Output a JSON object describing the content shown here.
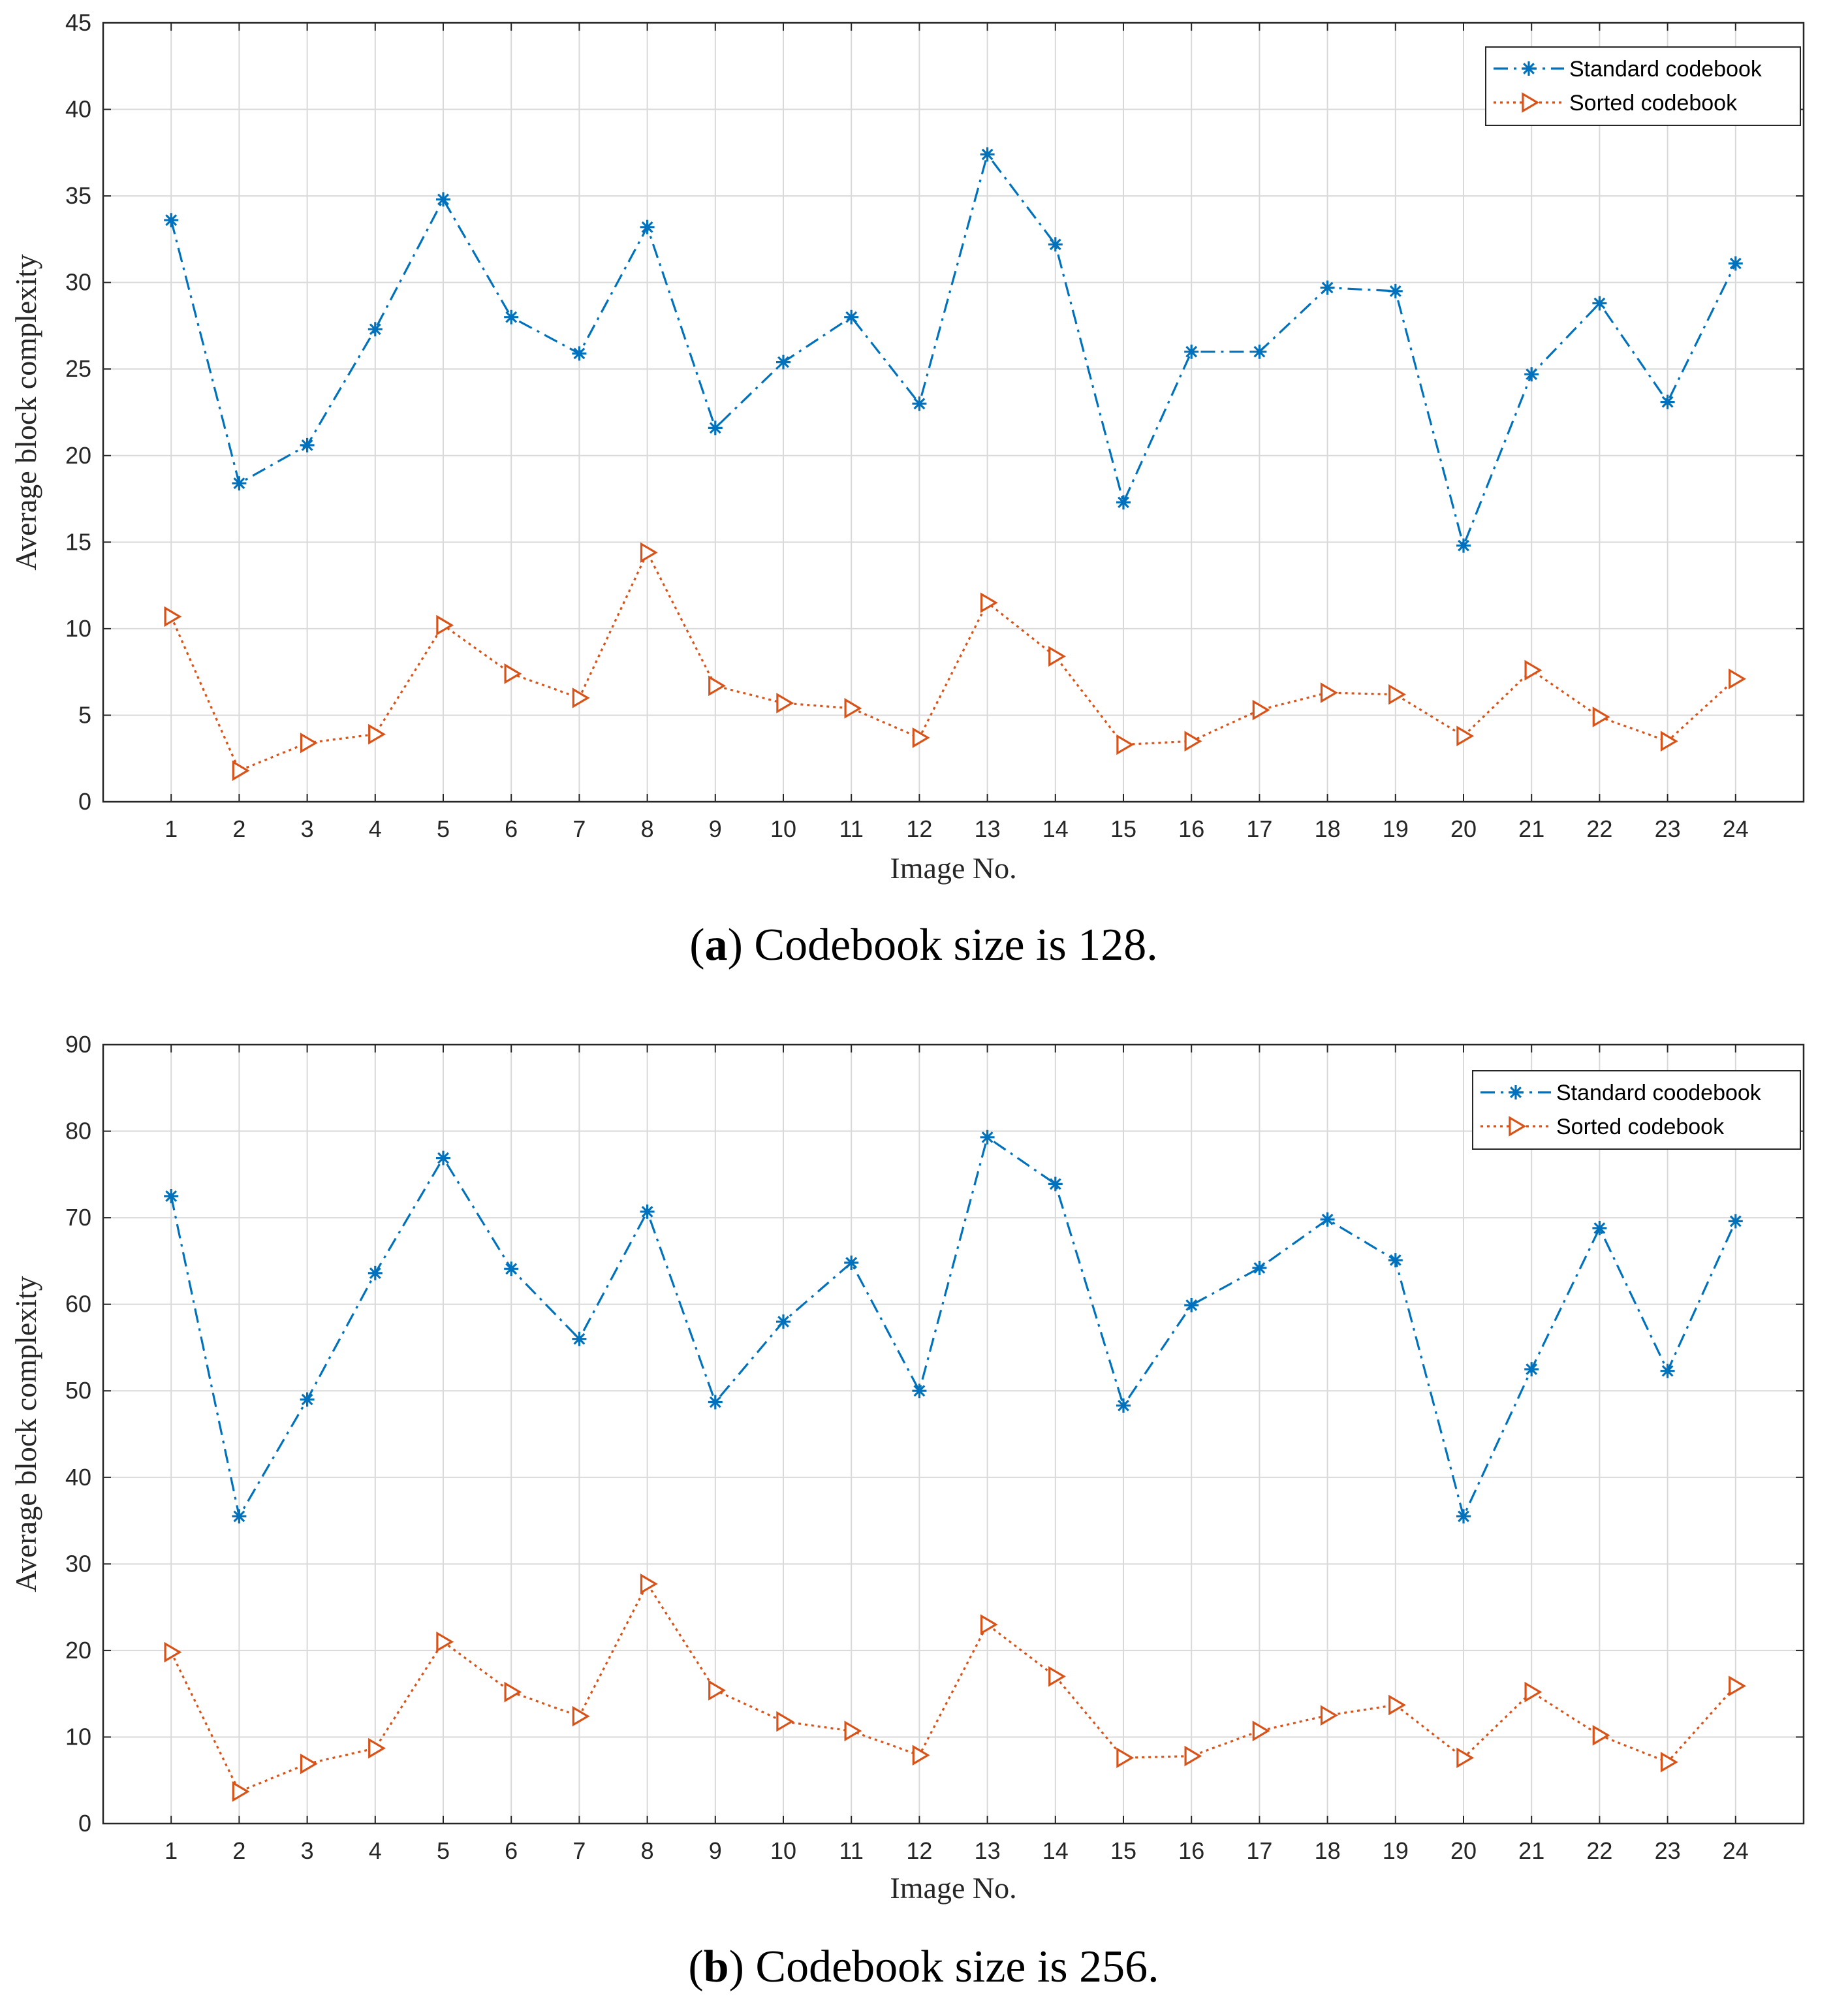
{
  "chart_data": [
    {
      "type": "line",
      "title": "",
      "caption": {
        "letter": "a",
        "open": "(",
        "close": ")",
        "text": " Codebook size is 128."
      },
      "xlabel": "Image No.",
      "ylabel": "Average block complexity",
      "x": [
        1,
        2,
        3,
        4,
        5,
        6,
        7,
        8,
        9,
        10,
        11,
        12,
        13,
        14,
        15,
        16,
        17,
        18,
        19,
        20,
        21,
        22,
        23,
        24
      ],
      "xlim": [
        0,
        25
      ],
      "ylim": [
        0,
        45
      ],
      "yticks": [
        0,
        5,
        10,
        15,
        20,
        25,
        30,
        35,
        40,
        45
      ],
      "grid": true,
      "legend_position": "top-right",
      "series": [
        {
          "name": "Standard codebook",
          "color": "#0072BD",
          "line_style": "dash-dot",
          "marker": "asterisk",
          "values": [
            33.6,
            18.4,
            20.6,
            27.3,
            34.8,
            28.0,
            25.9,
            33.2,
            21.6,
            25.4,
            28.0,
            23.0,
            37.4,
            32.2,
            17.3,
            26.0,
            26.0,
            29.7,
            29.5,
            14.8,
            24.7,
            28.8,
            23.1,
            31.1
          ]
        },
        {
          "name": "Sorted codebook",
          "color": "#D95319",
          "line_style": "dotted",
          "marker": "triangle-right",
          "values": [
            10.7,
            1.8,
            3.4,
            3.9,
            10.2,
            7.4,
            6.0,
            14.4,
            6.7,
            5.7,
            5.4,
            3.7,
            11.5,
            8.4,
            3.3,
            3.5,
            5.3,
            6.3,
            6.2,
            3.8,
            7.6,
            4.9,
            3.5,
            7.1
          ]
        }
      ]
    },
    {
      "type": "line",
      "title": "",
      "caption": {
        "letter": "b",
        "open": "(",
        "close": ")",
        "text": " Codebook size is 256."
      },
      "xlabel": "Image No.",
      "ylabel": "Average block complexity",
      "x": [
        1,
        2,
        3,
        4,
        5,
        6,
        7,
        8,
        9,
        10,
        11,
        12,
        13,
        14,
        15,
        16,
        17,
        18,
        19,
        20,
        21,
        22,
        23,
        24
      ],
      "xlim": [
        0,
        25
      ],
      "ylim": [
        0,
        90
      ],
      "yticks": [
        0,
        10,
        20,
        30,
        40,
        50,
        60,
        70,
        80,
        90
      ],
      "grid": true,
      "legend_position": "top-right",
      "series": [
        {
          "name": "Standard coodebook",
          "color": "#0072BD",
          "line_style": "dash-dot",
          "marker": "asterisk",
          "values": [
            72.5,
            35.5,
            49.0,
            63.6,
            76.9,
            64.1,
            56.0,
            70.7,
            48.7,
            58.0,
            64.8,
            50.0,
            79.3,
            73.9,
            48.3,
            59.9,
            64.2,
            69.8,
            65.1,
            35.5,
            52.5,
            68.8,
            52.3,
            69.6
          ]
        },
        {
          "name": "Sorted codebook",
          "color": "#D95319",
          "line_style": "dotted",
          "marker": "triangle-right",
          "values": [
            19.8,
            3.7,
            6.9,
            8.7,
            21.0,
            15.2,
            12.4,
            27.7,
            15.4,
            11.8,
            10.7,
            7.9,
            23.0,
            17.0,
            7.6,
            7.8,
            10.7,
            12.5,
            13.7,
            7.6,
            15.2,
            10.2,
            7.1,
            15.9
          ]
        }
      ]
    }
  ]
}
